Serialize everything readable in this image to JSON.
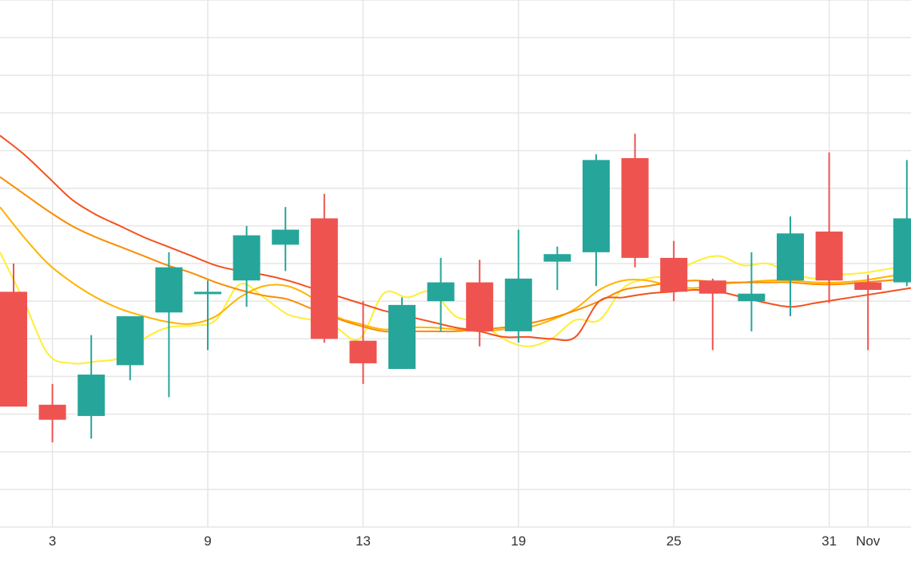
{
  "chart_data": {
    "type": "candlestick",
    "title": "",
    "xlabel": "",
    "ylabel": "",
    "grid": true,
    "x_ticks": [
      {
        "label": "3",
        "index": 1
      },
      {
        "label": "9",
        "index": 5
      },
      {
        "label": "13",
        "index": 9
      },
      {
        "label": "19",
        "index": 13
      },
      {
        "label": "25",
        "index": 17
      },
      {
        "label": "31",
        "index": 21
      },
      {
        "label": "Nov",
        "index": 22
      }
    ],
    "ylim": [
      0,
      14
    ],
    "y_gridlines": [
      0,
      1,
      2,
      3,
      4,
      5,
      6,
      7,
      8,
      9,
      10,
      11,
      12,
      13,
      14
    ],
    "colors": {
      "up": "#26a69a",
      "down": "#ef5350",
      "grid": "#e6e6e6"
    },
    "candles": [
      {
        "o": 6.25,
        "h": 7.0,
        "l": 3.3,
        "c": 3.2
      },
      {
        "o": 3.25,
        "h": 3.8,
        "l": 2.25,
        "c": 2.85
      },
      {
        "o": 2.95,
        "h": 5.1,
        "l": 2.35,
        "c": 4.05
      },
      {
        "o": 4.3,
        "h": 5.6,
        "l": 3.9,
        "c": 5.6
      },
      {
        "o": 5.7,
        "h": 7.3,
        "l": 3.45,
        "c": 6.9
      },
      {
        "o": 6.2,
        "h": 6.55,
        "l": 4.7,
        "c": 6.25
      },
      {
        "o": 6.55,
        "h": 8.0,
        "l": 5.85,
        "c": 7.75
      },
      {
        "o": 7.5,
        "h": 8.5,
        "l": 6.8,
        "c": 7.9
      },
      {
        "o": 8.2,
        "h": 8.85,
        "l": 4.9,
        "c": 5.0
      },
      {
        "o": 4.95,
        "h": 6.0,
        "l": 3.8,
        "c": 4.35
      },
      {
        "o": 4.2,
        "h": 6.1,
        "l": 4.2,
        "c": 5.9
      },
      {
        "o": 6.0,
        "h": 7.15,
        "l": 5.2,
        "c": 6.5
      },
      {
        "o": 6.5,
        "h": 7.1,
        "l": 4.8,
        "c": 5.2
      },
      {
        "o": 5.2,
        "h": 7.9,
        "l": 4.9,
        "c": 6.6
      },
      {
        "o": 7.05,
        "h": 7.45,
        "l": 6.3,
        "c": 7.25
      },
      {
        "o": 7.3,
        "h": 9.9,
        "l": 6.4,
        "c": 9.75
      },
      {
        "o": 9.8,
        "h": 10.45,
        "l": 6.9,
        "c": 7.15
      },
      {
        "o": 7.15,
        "h": 7.6,
        "l": 6.0,
        "c": 6.25
      },
      {
        "o": 6.55,
        "h": 6.6,
        "l": 4.7,
        "c": 6.2
      },
      {
        "o": 6.0,
        "h": 7.3,
        "l": 5.2,
        "c": 6.2
      },
      {
        "o": 6.55,
        "h": 8.25,
        "l": 5.6,
        "c": 7.8
      },
      {
        "o": 7.85,
        "h": 9.95,
        "l": 5.95,
        "c": 6.55
      },
      {
        "o": 6.5,
        "h": 6.7,
        "l": 4.7,
        "c": 6.3
      },
      {
        "o": 6.5,
        "h": 9.75,
        "l": 6.4,
        "c": 8.2
      }
    ],
    "series": [
      {
        "color": "#ffee33",
        "values": [
          7.3,
          6.0,
          4.6,
          4.35,
          4.4,
          4.5,
          5.0,
          5.3,
          5.35,
          5.5,
          6.45,
          6.1,
          5.65,
          5.5,
          5.3,
          5.0,
          6.2,
          6.1,
          6.25,
          5.6,
          5.45,
          5.0,
          4.8,
          5.0,
          5.5,
          5.5,
          6.35,
          6.6,
          6.7,
          7.05,
          7.2,
          6.95,
          7.0,
          6.75,
          6.6,
          6.7,
          6.75,
          6.85,
          6.95
        ]
      },
      {
        "color": "#ffb300",
        "values": [
          8.5,
          7.7,
          7.0,
          6.5,
          6.1,
          5.8,
          5.6,
          5.45,
          5.4,
          5.6,
          6.1,
          6.4,
          6.4,
          6.1,
          5.6,
          5.4,
          5.25,
          5.3,
          5.3,
          5.25,
          5.2,
          5.25,
          5.3,
          5.5,
          5.8,
          6.3,
          6.55,
          6.55,
          6.4,
          6.35,
          6.45,
          6.5,
          6.55,
          6.55,
          6.5,
          6.5,
          6.55,
          6.65,
          6.75
        ]
      },
      {
        "color": "#fb8c00",
        "values": [
          9.3,
          8.85,
          8.4,
          8.0,
          7.7,
          7.45,
          7.2,
          6.95,
          6.75,
          6.5,
          6.3,
          6.15,
          6.05,
          5.8,
          5.55,
          5.35,
          5.2,
          5.2,
          5.2,
          5.2,
          5.25,
          5.3,
          5.4,
          5.55,
          5.75,
          6.0,
          6.3,
          6.4,
          6.5,
          6.55,
          6.5,
          6.5,
          6.5,
          6.5,
          6.45,
          6.45,
          6.5,
          6.55,
          6.6
        ]
      },
      {
        "color": "#f4511e",
        "values": [
          10.4,
          9.9,
          9.3,
          8.7,
          8.3,
          8.0,
          7.7,
          7.45,
          7.2,
          6.95,
          6.8,
          6.7,
          6.55,
          6.35,
          6.15,
          5.95,
          5.75,
          5.6,
          5.45,
          5.3,
          5.2,
          5.05,
          5.05,
          5.0,
          5.05,
          6.0,
          6.1,
          6.2,
          6.25,
          6.3,
          6.25,
          6.1,
          5.95,
          5.85,
          5.95,
          6.05,
          6.15,
          6.25,
          6.35
        ]
      }
    ]
  }
}
